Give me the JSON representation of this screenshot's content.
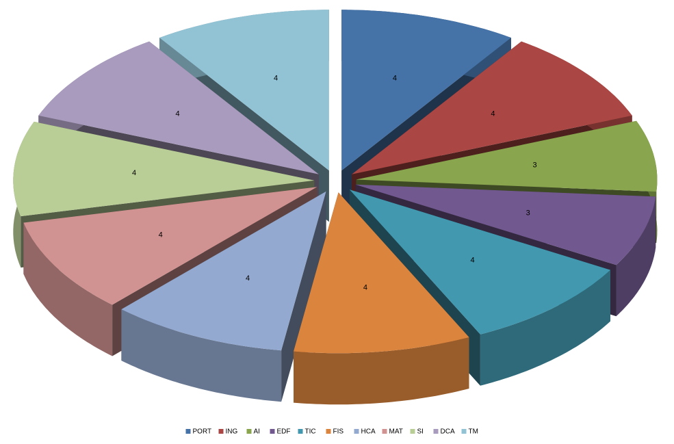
{
  "chart_data": {
    "type": "pie",
    "categories": [
      "PORT",
      "ING",
      "AI",
      "EDF",
      "TIC",
      "FIS",
      "HCA",
      "MAT",
      "SI",
      "DCA",
      "TM"
    ],
    "values": [
      4,
      4,
      3,
      3,
      4,
      4,
      4,
      4,
      4,
      4,
      4
    ],
    "colors": [
      "#4572a7",
      "#aa4643",
      "#89a54e",
      "#71588f",
      "#4198af",
      "#db843d",
      "#93a9cf",
      "#d19392",
      "#b9cd96",
      "#a99bbd",
      "#92c3d5"
    ],
    "legend": "bottom"
  }
}
